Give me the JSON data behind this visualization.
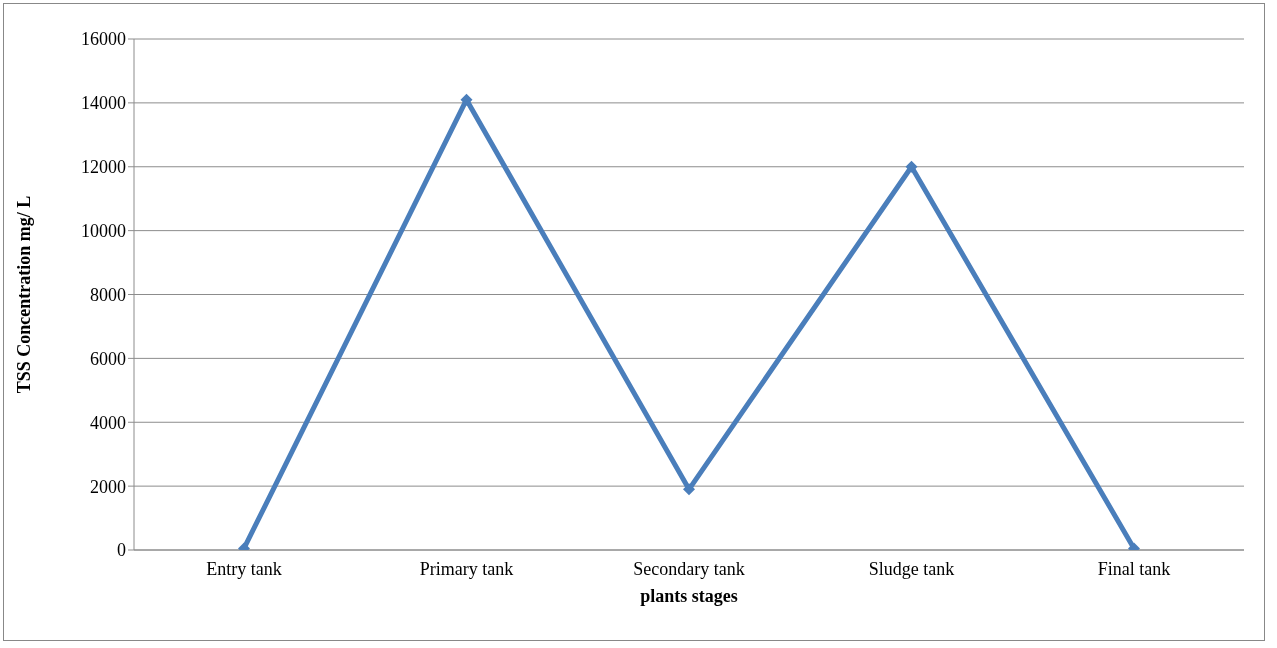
{
  "chart_data": {
    "type": "line",
    "xlabel": "plants stages",
    "ylabel": "TSS  Concentration mg/ L",
    "categories": [
      "Entry tank",
      "Primary tank",
      "Secondary tank",
      "Sludge tank",
      "Final tank"
    ],
    "series": [
      {
        "color": "#4a7ebb",
        "values": [
          50,
          14100,
          1900,
          12000,
          50
        ]
      }
    ],
    "ylim": [
      0,
      16000
    ],
    "yticks": [
      0,
      2000,
      4000,
      6000,
      8000,
      10000,
      12000,
      14000,
      16000
    ],
    "grid": "y",
    "legend": false,
    "marker": "diamond",
    "line_style": "solid"
  }
}
